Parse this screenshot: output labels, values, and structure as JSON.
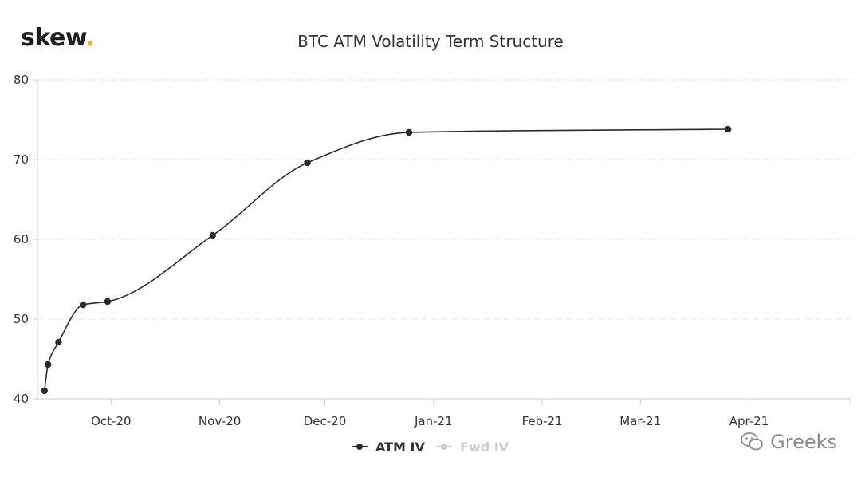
{
  "logo": {
    "text": "skew",
    "dot": "."
  },
  "watermark": {
    "icon": "wechat-icon",
    "text": "Greeks"
  },
  "colors": {
    "atm_line": "#2b2b2b",
    "fwd_inactive": "#cccccc",
    "logo_dot": "#e8b23a",
    "gridline": "#e6e6e6"
  },
  "chart_data": {
    "type": "line",
    "title": "BTC ATM Volatility Term Structure",
    "xlabel": "",
    "ylabel": "",
    "x_range": [
      "2020-09-10",
      "2021-04-30"
    ],
    "ylim": [
      40,
      80
    ],
    "y_ticks": [
      40,
      50,
      60,
      70,
      80
    ],
    "x_ticks": [
      {
        "date": "2020-10-01",
        "label": "Oct-20"
      },
      {
        "date": "2020-11-01",
        "label": "Nov-20"
      },
      {
        "date": "2020-12-01",
        "label": "Dec-20"
      },
      {
        "date": "2021-01-01",
        "label": "Jan-21"
      },
      {
        "date": "2021-02-01",
        "label": "Feb-21"
      },
      {
        "date": "2021-03-01",
        "label": "Mar-21"
      },
      {
        "date": "2021-04-01",
        "label": "Apr-21"
      }
    ],
    "grid": "horizontal dashed",
    "legend_position": "bottom-center",
    "series": [
      {
        "name": "ATM IV",
        "active": true,
        "points": [
          {
            "x": "2020-09-12",
            "y": 41.0
          },
          {
            "x": "2020-09-13",
            "y": 44.3
          },
          {
            "x": "2020-09-16",
            "y": 47.1
          },
          {
            "x": "2020-09-23",
            "y": 51.8
          },
          {
            "x": "2020-09-30",
            "y": 52.2
          },
          {
            "x": "2020-10-30",
            "y": 60.5
          },
          {
            "x": "2020-11-26",
            "y": 69.6
          },
          {
            "x": "2020-12-25",
            "y": 73.4
          },
          {
            "x": "2021-03-26",
            "y": 73.8
          }
        ]
      },
      {
        "name": "Fwd IV",
        "active": false,
        "points": []
      }
    ]
  }
}
